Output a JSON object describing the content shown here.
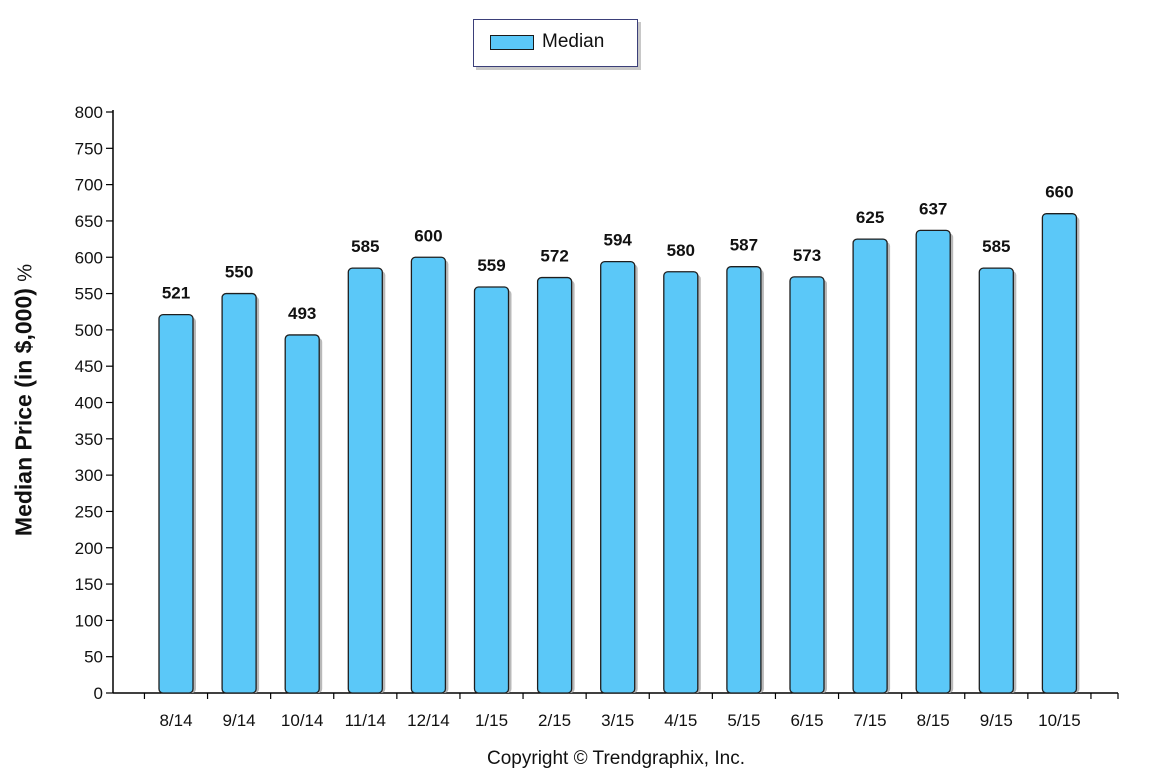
{
  "legend": {
    "label": "Median"
  },
  "copyright": "Copyright © Trendgraphix, Inc.",
  "chart_data": {
    "type": "bar",
    "title": "",
    "ylabel": "Median Price (in $,000)",
    "ylabel_unit": "%",
    "xlabel": "",
    "ylim": [
      0,
      800
    ],
    "ytick_step": 50,
    "grid": false,
    "legend_position": "top-center",
    "categories": [
      "8/14",
      "9/14",
      "10/14",
      "11/14",
      "12/14",
      "1/15",
      "2/15",
      "3/15",
      "4/15",
      "5/15",
      "6/15",
      "7/15",
      "8/15",
      "9/15",
      "10/15"
    ],
    "series": [
      {
        "name": "Median",
        "color": "#5bc8f8",
        "values": [
          521,
          550,
          493,
          585,
          600,
          559,
          572,
          594,
          580,
          587,
          573,
          625,
          637,
          585,
          660
        ]
      }
    ]
  }
}
